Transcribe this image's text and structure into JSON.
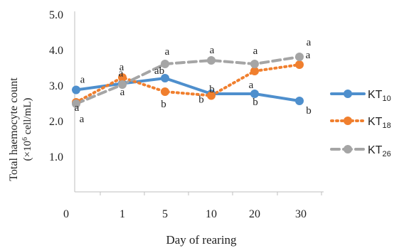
{
  "chart_data": {
    "type": "line",
    "xlabel": "Day of rearing",
    "ylabel_line1": "Total haemocyte count",
    "ylabel_unit_prefix": "(×10",
    "ylabel_unit_exp": "6",
    "ylabel_unit_suffix": " cell/mL)",
    "categories": [
      "0",
      "1",
      "5",
      "10",
      "20",
      "30"
    ],
    "y_ticks": [
      "1.0",
      "2.0",
      "3.0",
      "4.0",
      "5.0"
    ],
    "ylim": [
      0,
      5
    ],
    "grid": false,
    "legend_position": "right",
    "series": [
      {
        "name": "KT10",
        "legend_base": "KT",
        "legend_sub": "10",
        "color": "#4e8fcd",
        "style": "solid",
        "marker": "circle",
        "values": [
          2.87,
          3.05,
          3.2,
          2.76,
          2.76,
          2.56
        ],
        "labels": [
          "a",
          "a",
          "ab",
          "b",
          "b",
          "b"
        ]
      },
      {
        "name": "KT18",
        "legend_base": "KT",
        "legend_sub": "18",
        "color": "#f07f2e",
        "style": "dotted",
        "marker": "circle",
        "values": [
          2.52,
          3.22,
          2.82,
          2.71,
          3.4,
          3.58
        ],
        "labels": [
          "a",
          "a",
          "b",
          "b",
          "a",
          "a"
        ]
      },
      {
        "name": "KT26",
        "legend_base": "KT",
        "legend_sub": "26",
        "color": "#a5a5a5",
        "style": "dashed",
        "marker": "circle",
        "values": [
          2.48,
          3.02,
          3.6,
          3.7,
          3.6,
          3.8
        ],
        "labels": [
          "a",
          "a",
          "a",
          "a",
          "a",
          "a"
        ]
      }
    ]
  }
}
